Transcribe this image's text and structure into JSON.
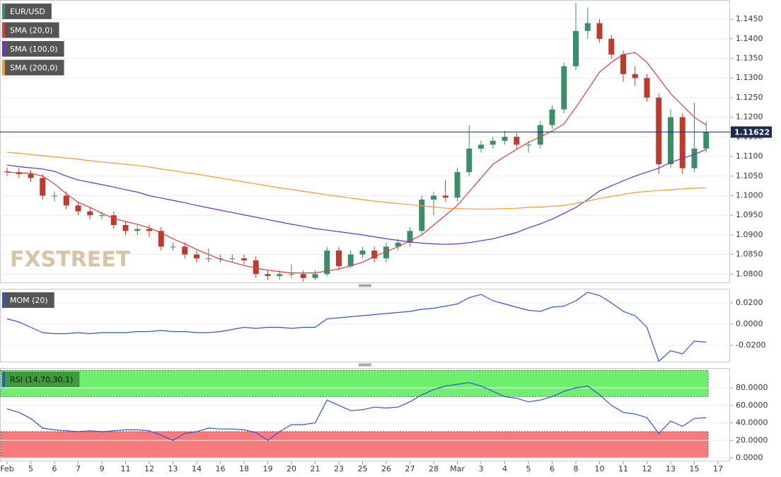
{
  "chart_data": [
    {
      "type": "candlestick",
      "name": "EUR/USD",
      "name_color": "#3a8f6a",
      "categories": [
        "Feb",
        null,
        "5",
        null,
        "6",
        null,
        "7",
        null,
        "9",
        null,
        "11",
        null,
        "12",
        null,
        "13",
        null,
        "14",
        null,
        "16",
        null,
        "18",
        null,
        "19",
        null,
        "20",
        null,
        "21",
        null,
        "23",
        null,
        "25",
        null,
        "26",
        null,
        "27",
        null,
        "28",
        null,
        "Mar",
        null,
        "3",
        null,
        "4",
        null,
        "5",
        null,
        "6",
        null,
        "8",
        null,
        "10",
        null,
        "11",
        null,
        "12",
        null,
        "13",
        null,
        "15",
        null,
        "17"
      ],
      "open": [
        1.1062,
        1.106,
        1.1055,
        1.1045,
        1.1,
        1.1,
        1.0975,
        1.096,
        1.095,
        1.095,
        1.0925,
        1.091,
        1.0915,
        1.091,
        1.087,
        1.087,
        1.085,
        1.084,
        1.084,
        1.084,
        1.084,
        1.0835,
        1.08,
        1.0795,
        1.08,
        1.08,
        1.079,
        1.08,
        1.086,
        1.082,
        1.085,
        1.086,
        1.084,
        1.087,
        1.088,
        1.091,
        1.099,
        1.1,
        1.0995,
        1.106,
        1.112,
        1.113,
        1.114,
        1.115,
        1.113,
        1.113,
        1.118,
        1.122,
        1.133,
        1.142,
        1.144,
        1.14,
        1.136,
        1.131,
        1.13,
        1.125,
        1.108,
        1.12,
        1.107,
        1.112,
        null
      ],
      "high": [
        1.1072,
        1.107,
        1.1065,
        1.1055,
        1.101,
        1.101,
        1.0985,
        1.097,
        1.096,
        1.096,
        1.0935,
        1.0925,
        1.0925,
        1.092,
        1.088,
        1.088,
        1.086,
        1.0865,
        1.085,
        1.085,
        1.085,
        1.0845,
        1.081,
        1.081,
        1.0825,
        1.081,
        1.081,
        1.087,
        1.087,
        1.086,
        1.087,
        1.087,
        1.088,
        1.089,
        1.092,
        1.1,
        1.101,
        1.104,
        1.107,
        1.118,
        1.114,
        1.115,
        1.1165,
        1.116,
        1.114,
        1.119,
        1.123,
        1.134,
        1.1492,
        1.148,
        1.145,
        1.141,
        1.137,
        1.133,
        1.131,
        1.126,
        1.122,
        1.121,
        1.1237,
        1.119,
        null
      ],
      "low": [
        1.105,
        1.1045,
        1.1035,
        1.099,
        1.0985,
        1.0965,
        1.095,
        1.094,
        1.094,
        1.0915,
        1.09,
        1.09,
        1.0895,
        1.086,
        1.086,
        1.084,
        1.083,
        1.083,
        1.083,
        1.083,
        1.0825,
        1.079,
        1.0785,
        1.0785,
        1.079,
        1.078,
        1.0785,
        1.0795,
        1.081,
        1.0815,
        1.084,
        1.083,
        1.083,
        1.086,
        1.087,
        1.09,
        1.095,
        1.0985,
        1.0985,
        1.105,
        1.111,
        1.112,
        1.113,
        1.112,
        1.111,
        1.112,
        1.117,
        1.121,
        1.132,
        1.14,
        1.139,
        1.135,
        1.129,
        1.128,
        1.124,
        1.1055,
        1.107,
        1.1055,
        1.106,
        1.111,
        null
      ],
      "close": [
        1.106,
        1.1055,
        1.1045,
        1.1,
        1.1,
        1.0975,
        1.096,
        1.095,
        1.095,
        1.0925,
        1.091,
        1.0915,
        1.091,
        1.087,
        1.087,
        1.085,
        1.084,
        1.084,
        1.084,
        1.084,
        1.0835,
        1.08,
        1.0795,
        1.08,
        1.08,
        1.079,
        1.08,
        1.086,
        1.082,
        1.085,
        1.086,
        1.084,
        1.087,
        1.088,
        1.091,
        1.099,
        1.1,
        1.0995,
        1.106,
        1.112,
        1.113,
        1.114,
        1.115,
        1.113,
        1.113,
        1.118,
        1.122,
        1.133,
        1.142,
        1.144,
        1.14,
        1.136,
        1.131,
        1.13,
        1.125,
        1.108,
        1.12,
        1.107,
        1.112,
        1.1162,
        null
      ],
      "up_color": "#3a8f6a",
      "down_color": "#c0392b",
      "series": [
        {
          "name": "SMA (20,0)",
          "color": "#e53935",
          "values": [
            1.106,
            1.1058,
            1.1057,
            1.105,
            1.103,
            1.1005,
            1.0983,
            1.097,
            1.0955,
            1.0942,
            1.0934,
            1.0927,
            1.0918,
            1.0905,
            1.089,
            1.0877,
            1.0863,
            1.085,
            1.0838,
            1.083,
            1.0822,
            1.0815,
            1.081,
            1.0806,
            1.0803,
            1.0803,
            1.0803,
            1.0808,
            1.0813,
            1.0821,
            1.083,
            1.0845,
            1.0857,
            1.087,
            1.0885,
            1.09,
            1.0925,
            1.095,
            1.0975,
            1.101,
            1.1045,
            1.108,
            1.11,
            1.1118,
            1.1136,
            1.115,
            1.1165,
            1.1183,
            1.1225,
            1.127,
            1.1315,
            1.134,
            1.136,
            1.1365,
            1.134,
            1.13,
            1.126,
            1.123,
            1.12,
            1.118,
            null
          ]
        },
        {
          "name": "SMA (100,0)",
          "color": "#6a2fd6",
          "values": [
            1.1078,
            1.1074,
            1.1071,
            1.1068,
            1.1062,
            1.105,
            1.104,
            1.1034,
            1.1028,
            1.1022,
            1.1015,
            1.1009,
            1.1,
            1.0994,
            1.0988,
            1.0982,
            1.0975,
            1.0969,
            1.0963,
            1.0957,
            1.0951,
            1.0945,
            1.0939,
            1.0933,
            1.0927,
            1.0922,
            1.0916,
            1.0912,
            1.0908,
            1.0904,
            1.09,
            1.0895,
            1.089,
            1.0886,
            1.0882,
            1.0879,
            1.0877,
            1.0876,
            1.0877,
            1.088,
            1.0885,
            1.089,
            1.0898,
            1.0906,
            1.0918,
            1.0928,
            1.094,
            1.0955,
            1.097,
            1.099,
            1.1012,
            1.1025,
            1.1038,
            1.105,
            1.106,
            1.107,
            1.1085,
            1.1095,
            1.1105,
            1.1118,
            null
          ]
        },
        {
          "name": "SMA (200,0)",
          "color": "#f59a2a",
          "values": [
            1.1111,
            1.1108,
            1.1105,
            1.1102,
            1.1099,
            1.1096,
            1.1093,
            1.1089,
            1.1086,
            1.1083,
            1.108,
            1.1077,
            1.1073,
            1.1068,
            1.1064,
            1.1059,
            1.1055,
            1.105,
            1.1045,
            1.104,
            1.1035,
            1.103,
            1.1025,
            1.102,
            1.1016,
            1.1011,
            1.1007,
            1.1002,
            1.0998,
            1.0994,
            1.099,
            1.0986,
            1.0983,
            1.098,
            1.0977,
            1.0974,
            1.0971,
            1.0968,
            1.0967,
            1.0966,
            1.0966,
            1.0966,
            1.0967,
            1.0968,
            1.097,
            1.0971,
            1.0973,
            1.0975,
            1.098,
            1.0986,
            1.0993,
            1.0998,
            1.1003,
            1.1008,
            1.1011,
            1.1013,
            1.1015,
            1.1017,
            1.1019,
            1.102,
            null
          ]
        }
      ],
      "last_price": 1.11622,
      "last_price_color": "#1b2a4e",
      "watermark": "FXSTREET",
      "ylim": [
        1.0777,
        1.1499
      ],
      "yticks": [
        {
          "value": 1.08,
          "label": "1.0800"
        },
        {
          "value": 1.085,
          "label": "1.0850"
        },
        {
          "value": 1.09,
          "label": "1.0900"
        },
        {
          "value": 1.095,
          "label": "1.0950"
        },
        {
          "value": 1.1,
          "label": "1.1000"
        },
        {
          "value": 1.105,
          "label": "1.1050"
        },
        {
          "value": 1.11,
          "label": "1.1100"
        },
        {
          "value": 1.115,
          "label": "1.1150"
        },
        {
          "value": 1.12,
          "label": "1.1200"
        },
        {
          "value": 1.125,
          "label": "1.1250"
        },
        {
          "value": 1.13,
          "label": "1.1300"
        },
        {
          "value": 1.135,
          "label": "1.1350"
        },
        {
          "value": 1.14,
          "label": "1.1400"
        },
        {
          "value": 1.145,
          "label": "1.1450"
        }
      ],
      "grid": true
    },
    {
      "type": "line",
      "series": [
        {
          "name": "MOM (20)",
          "color": "#2f55d4",
          "values": [
            0.005,
            0.002,
            -0.003,
            -0.008,
            -0.009,
            -0.009,
            -0.008,
            -0.009,
            -0.008,
            -0.008,
            -0.008,
            -0.007,
            -0.007,
            -0.006,
            -0.007,
            -0.007,
            -0.008,
            -0.008,
            -0.007,
            -0.005,
            -0.003,
            -0.004,
            -0.003,
            -0.003,
            -0.004,
            -0.003,
            -0.003,
            0.005,
            0.006,
            0.007,
            0.008,
            0.009,
            0.01,
            0.011,
            0.012,
            0.014,
            0.015,
            0.017,
            0.019,
            0.025,
            0.028,
            0.022,
            0.019,
            0.016,
            0.013,
            0.012,
            0.016,
            0.017,
            0.022,
            0.03,
            0.027,
            0.02,
            0.012,
            0.008,
            -0.003,
            -0.035,
            -0.025,
            -0.028,
            -0.016,
            -0.017,
            null
          ]
        }
      ],
      "ylim": [
        -0.036,
        0.0333
      ],
      "yticks": [
        {
          "value": -0.02,
          "label": "-0.0200"
        },
        {
          "value": 0,
          "label": "0.0000"
        },
        {
          "value": 0.02,
          "label": "0.0200"
        }
      ],
      "grid": true
    },
    {
      "type": "line",
      "series": [
        {
          "name": "RSI (14,70,30,1)",
          "color": "#2f55d4",
          "values": [
            56,
            52,
            45,
            34,
            32,
            31,
            30,
            31,
            30,
            31,
            32,
            32,
            31,
            26,
            20,
            28,
            30,
            34,
            33,
            33,
            32,
            29,
            20,
            30,
            38,
            38,
            40,
            66,
            60,
            54,
            55,
            58,
            57,
            58,
            64,
            72,
            78,
            82,
            84,
            86,
            82,
            76,
            70,
            68,
            64,
            66,
            70,
            76,
            80,
            82,
            72,
            60,
            52,
            50,
            46,
            28,
            42,
            36,
            45,
            46,
            null
          ]
        }
      ],
      "legend_color": "#3d9b3d",
      "bands": [
        {
          "from": 70,
          "to": 100,
          "color": "#6ef06e"
        },
        {
          "from": 0,
          "to": 30,
          "color": "#f77b7b"
        }
      ],
      "ylim": [
        -4,
        102.6
      ],
      "yticks": [
        {
          "value": 0,
          "label": "0.0000"
        },
        {
          "value": 20,
          "label": "20.0000"
        },
        {
          "value": 40,
          "label": "40.0000"
        },
        {
          "value": 60,
          "label": "60.0000"
        },
        {
          "value": 80,
          "label": "80.0000"
        }
      ],
      "grid": true
    }
  ]
}
